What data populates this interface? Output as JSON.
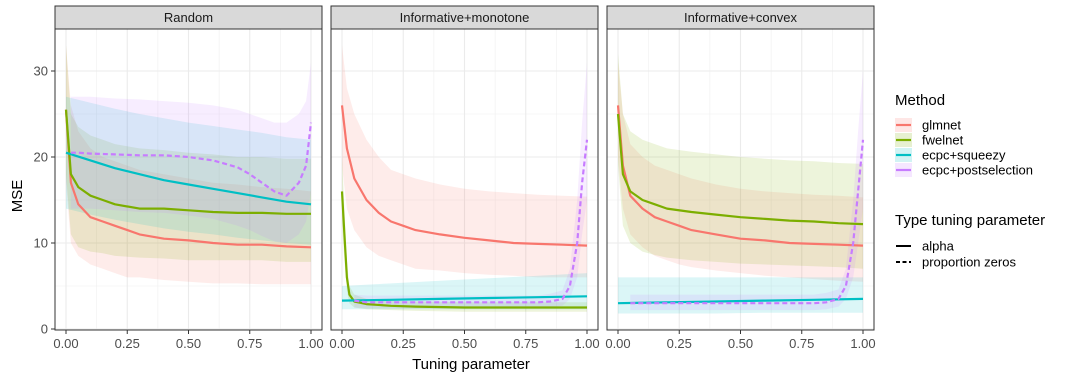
{
  "chart_data": {
    "type": "line",
    "xlabel": "Tuning parameter",
    "ylabel": "MSE",
    "xlim": [
      0,
      1
    ],
    "ylim": [
      0,
      35
    ],
    "x_ticks": [
      "0.00",
      "0.25",
      "0.50",
      "0.75",
      "1.00"
    ],
    "y_ticks": [
      "0",
      "10",
      "20",
      "30"
    ],
    "colors": {
      "glmnet": "#f8766d",
      "fwelnet": "#7cae00",
      "ecpc+squeezy": "#00bfc4",
      "ecpc+postselection": "#c77cff"
    },
    "legend": {
      "placement": "right",
      "method_title": "Method",
      "methods": [
        "glmnet",
        "fwelnet",
        "ecpc+squeezy",
        "ecpc+postselection"
      ],
      "type_title": "Type tuning parameter",
      "types": [
        {
          "label": "alpha",
          "style": "solid"
        },
        {
          "label": "proportion zeros",
          "style": "dashed"
        }
      ]
    },
    "panels": [
      {
        "title": "Random",
        "series": [
          {
            "name": "glmnet",
            "style": "solid",
            "x": [
              0,
              0.02,
              0.05,
              0.1,
              0.15,
              0.2,
              0.25,
              0.3,
              0.4,
              0.5,
              0.6,
              0.7,
              0.8,
              0.9,
              1.0
            ],
            "y": [
              25.5,
              17,
              14.5,
              13,
              12.5,
              12,
              11.5,
              11,
              10.5,
              10.3,
              10,
              9.8,
              9.8,
              9.6,
              9.5
            ],
            "lower": [
              17,
              10,
              8.5,
              7.5,
              7,
              6.5,
              6,
              6,
              5.7,
              5.5,
              5.3,
              5.3,
              5.2,
              5.2,
              5.2
            ],
            "upper": [
              33,
              26,
              23,
              21,
              20,
              19.5,
              19,
              18.5,
              18,
              17.5,
              17,
              16.8,
              16.5,
              16.3,
              16
            ]
          },
          {
            "name": "fwelnet",
            "style": "solid",
            "x": [
              0,
              0.02,
              0.05,
              0.1,
              0.15,
              0.2,
              0.3,
              0.4,
              0.5,
              0.6,
              0.7,
              0.8,
              0.9,
              1.0
            ],
            "y": [
              25.5,
              18,
              16.5,
              15.5,
              15,
              14.5,
              14,
              14,
              13.8,
              13.6,
              13.5,
              13.5,
              13.4,
              13.4
            ],
            "lower": [
              18,
              11,
              9.5,
              9,
              8.8,
              8.5,
              8.3,
              8.2,
              8,
              8,
              8,
              8,
              7.8,
              7.8
            ],
            "upper": [
              33,
              25,
              23.5,
              22.5,
              22,
              21.5,
              21,
              20.8,
              20.5,
              20.3,
              20,
              20,
              19.8,
              19.8
            ]
          },
          {
            "name": "ecpc+squeezy",
            "style": "solid",
            "x": [
              0,
              0.1,
              0.2,
              0.3,
              0.4,
              0.5,
              0.6,
              0.7,
              0.8,
              0.9,
              1.0
            ],
            "y": [
              20.5,
              19.6,
              18.7,
              18,
              17.3,
              16.8,
              16.3,
              15.8,
              15.3,
              14.8,
              14.5
            ],
            "lower": [
              14,
              13.3,
              12.7,
              12.2,
              11.7,
              11.3,
              11,
              10.6,
              10.3,
              10,
              9.8
            ],
            "upper": [
              27,
              26.3,
              25.6,
              25,
              24.5,
              24,
              23.6,
              23.2,
              22.8,
              22.3,
              22
            ]
          },
          {
            "name": "ecpc+postselection",
            "style": "dashed",
            "x": [
              0.02,
              0.05,
              0.1,
              0.2,
              0.3,
              0.4,
              0.5,
              0.6,
              0.7,
              0.75,
              0.8,
              0.85,
              0.9,
              0.95,
              0.98,
              1.0
            ],
            "y": [
              20.5,
              20.5,
              20.4,
              20.3,
              20.2,
              20.2,
              20,
              19.6,
              18.8,
              18,
              17,
              16,
              15.5,
              17,
              19,
              24
            ],
            "lower": [
              14,
              14,
              14,
              13.8,
              13.6,
              13.5,
              13.2,
              12.8,
              12,
              11.5,
              10.8,
              10.2,
              10,
              11,
              12.5,
              16
            ],
            "upper": [
              27,
              27,
              27,
              26.8,
              26.7,
              26.5,
              26.3,
              26,
              25.5,
              25,
              24.5,
              24,
              24,
              25,
              26.5,
              31
            ]
          }
        ]
      },
      {
        "title": "Informative+monotone",
        "series": [
          {
            "name": "glmnet",
            "style": "solid",
            "x": [
              0,
              0.02,
              0.05,
              0.1,
              0.15,
              0.2,
              0.25,
              0.3,
              0.4,
              0.5,
              0.6,
              0.7,
              0.8,
              0.9,
              1.0
            ],
            "y": [
              26,
              21,
              17.5,
              15,
              13.5,
              12.5,
              12,
              11.5,
              11,
              10.6,
              10.3,
              10,
              9.9,
              9.8,
              9.7
            ],
            "lower": [
              19,
              14,
              11.5,
              9.5,
              8.5,
              8,
              7.5,
              7,
              6.8,
              6.5,
              6.3,
              6.2,
              6,
              6,
              6
            ],
            "upper": [
              33,
              28,
              25,
              22,
              20,
              18.5,
              18,
              17.5,
              16.8,
              16.3,
              16,
              15.8,
              15.6,
              15.5,
              15.4
            ]
          },
          {
            "name": "fwelnet",
            "style": "solid",
            "x": [
              0,
              0.01,
              0.02,
              0.03,
              0.05,
              0.1,
              0.2,
              0.3,
              0.5,
              0.7,
              1.0
            ],
            "y": [
              16,
              11,
              6,
              4,
              3.2,
              2.9,
              2.7,
              2.6,
              2.5,
              2.5,
              2.5
            ],
            "lower": [
              12,
              8,
              4.5,
              3,
              2.5,
              2.3,
              2.2,
              2.1,
              2,
              2,
              2
            ],
            "upper": [
              20,
              14,
              8,
              5,
              4,
              3.5,
              3.3,
              3.2,
              3.1,
              3.1,
              3.1
            ]
          },
          {
            "name": "ecpc+squeezy",
            "style": "solid",
            "x": [
              0,
              0.2,
              0.4,
              0.6,
              0.8,
              1.0
            ],
            "y": [
              3.3,
              3.4,
              3.5,
              3.6,
              3.7,
              3.8
            ],
            "lower": [
              2.3,
              2.3,
              2.3,
              2.3,
              2.3,
              2.3
            ],
            "upper": [
              5,
              5.3,
              5.6,
              5.9,
              6.2,
              6.5
            ]
          },
          {
            "name": "ecpc+postselection",
            "style": "dashed",
            "x": [
              0.05,
              0.1,
              0.2,
              0.3,
              0.5,
              0.7,
              0.8,
              0.85,
              0.9,
              0.93,
              0.96,
              0.98,
              1.0
            ],
            "y": [
              3.3,
              3.1,
              3.1,
              3.1,
              3.1,
              3.1,
              3.1,
              3.2,
              3.5,
              5,
              10,
              17,
              22
            ],
            "lower": [
              2.5,
              2.4,
              2.4,
              2.4,
              2.4,
              2.4,
              2.4,
              2.5,
              2.7,
              3.5,
              6,
              11,
              15
            ],
            "upper": [
              4,
              3.9,
              3.9,
              3.9,
              3.9,
              3.9,
              3.9,
              4.1,
              4.5,
              7,
              15,
              24,
              31
            ]
          }
        ]
      },
      {
        "title": "Informative+convex",
        "series": [
          {
            "name": "glmnet",
            "style": "solid",
            "x": [
              0,
              0.02,
              0.05,
              0.1,
              0.15,
              0.2,
              0.25,
              0.3,
              0.4,
              0.5,
              0.6,
              0.7,
              0.8,
              0.9,
              1.0
            ],
            "y": [
              26,
              19,
              15.5,
              14,
              13,
              12.5,
              12,
              11.5,
              11,
              10.5,
              10.3,
              10,
              9.9,
              9.8,
              9.7
            ],
            "lower": [
              20,
              14,
              11,
              9.5,
              8.5,
              8,
              7.5,
              7.2,
              6.8,
              6.5,
              6.2,
              6,
              5.8,
              5.6,
              5.5
            ],
            "upper": [
              31,
              25,
              21.5,
              20,
              19,
              18.5,
              18,
              17.5,
              16.8,
              16.3,
              16,
              15.8,
              15.6,
              15.5,
              15.3
            ]
          },
          {
            "name": "fwelnet",
            "style": "solid",
            "x": [
              0,
              0.02,
              0.05,
              0.1,
              0.15,
              0.2,
              0.3,
              0.4,
              0.5,
              0.6,
              0.7,
              0.8,
              0.9,
              1.0
            ],
            "y": [
              25,
              18,
              16,
              15,
              14.5,
              14,
              13.6,
              13.3,
              13,
              12.8,
              12.6,
              12.5,
              12.3,
              12.2
            ],
            "lower": [
              19,
              12,
              10,
              9,
              8.6,
              8.3,
              8,
              7.8,
              7.6,
              7.5,
              7.4,
              7.3,
              7.2,
              7
            ],
            "upper": [
              32,
              25,
              23,
              22,
              21.5,
              21,
              20.6,
              20.3,
              20,
              19.8,
              19.6,
              19.5,
              19.3,
              19.2
            ]
          },
          {
            "name": "ecpc+squeezy",
            "style": "solid",
            "x": [
              0,
              0.2,
              0.4,
              0.6,
              0.8,
              1.0
            ],
            "y": [
              3,
              3.1,
              3.2,
              3.3,
              3.4,
              3.5
            ],
            "lower": [
              1.8,
              1.8,
              1.8,
              1.9,
              1.9,
              1.9
            ],
            "upper": [
              6,
              6,
              6,
              6,
              6,
              6
            ]
          },
          {
            "name": "ecpc+postselection",
            "style": "dashed",
            "x": [
              0.05,
              0.1,
              0.2,
              0.3,
              0.5,
              0.7,
              0.8,
              0.85,
              0.9,
              0.93,
              0.96,
              0.98,
              1.0
            ],
            "y": [
              3,
              3,
              3,
              3,
              3,
              3,
              3,
              3.1,
              3.5,
              5,
              10,
              16,
              22
            ],
            "lower": [
              2.2,
              2.2,
              2.2,
              2.2,
              2.2,
              2.2,
              2.2,
              2.3,
              2.6,
              3.5,
              6,
              10,
              14
            ],
            "upper": [
              4,
              4,
              4,
              4,
              4,
              4,
              4,
              4.2,
              4.6,
              7,
              15,
              23,
              30
            ]
          }
        ]
      }
    ]
  }
}
